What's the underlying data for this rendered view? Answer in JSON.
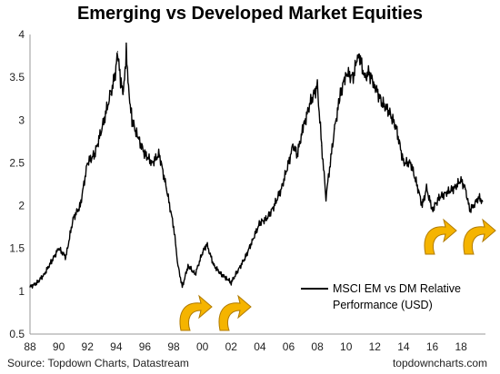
{
  "title": "Emerging vs Developed Market Equities",
  "source": "Source: Topdown Charts, Datastream",
  "watermark": "topdowncharts.com",
  "arrow_icon": "curved-up-arrow-icon",
  "colors": {
    "line": "#000000",
    "arrow_fill": "#F5B400",
    "arrow_edge": "#B07A00",
    "axis": "#999999"
  },
  "chart_data": {
    "type": "line",
    "title": "Emerging vs Developed Market Equities",
    "ylim": [
      0.5,
      4
    ],
    "yticks": [
      "0.5",
      "1",
      "1.5",
      "2",
      "2.5",
      "3",
      "3.5",
      "4"
    ],
    "xlim": [
      1988,
      2019.7
    ],
    "xticks": [
      "88",
      "90",
      "92",
      "94",
      "96",
      "98",
      "00",
      "02",
      "04",
      "06",
      "08",
      "10",
      "12",
      "14",
      "16",
      "18"
    ],
    "grid": false,
    "legend_position": "lower-right",
    "series": [
      {
        "name": "MSCI EM vs DM Relative Performance (USD)",
        "x": [
          1988.0,
          1988.5,
          1989.0,
          1989.5,
          1990.0,
          1990.5,
          1991.0,
          1991.5,
          1992.0,
          1992.5,
          1993.0,
          1993.3,
          1993.6,
          1993.9,
          1994.1,
          1994.3,
          1994.5,
          1994.7,
          1994.9,
          1995.1,
          1995.5,
          1996.0,
          1996.5,
          1997.0,
          1997.5,
          1998.0,
          1998.3,
          1998.6,
          1999.0,
          1999.5,
          2000.0,
          2000.3,
          2000.8,
          2001.3,
          2001.7,
          2002.0,
          2002.5,
          2003.0,
          2003.5,
          2004.0,
          2004.5,
          2005.0,
          2005.5,
          2006.0,
          2006.3,
          2006.6,
          2007.0,
          2007.5,
          2008.0,
          2008.3,
          2008.6,
          2008.9,
          2009.2,
          2009.6,
          2010.0,
          2010.5,
          2010.8,
          2011.0,
          2011.3,
          2011.6,
          2012.0,
          2012.5,
          2013.0,
          2013.5,
          2014.0,
          2014.5,
          2015.0,
          2015.3,
          2015.6,
          2016.0,
          2016.5,
          2017.0,
          2017.5,
          2018.0,
          2018.3,
          2018.6,
          2018.9,
          2019.2,
          2019.5
        ],
        "y": [
          1.05,
          1.1,
          1.2,
          1.35,
          1.5,
          1.4,
          1.85,
          2.0,
          2.5,
          2.6,
          2.9,
          3.1,
          3.3,
          3.5,
          3.8,
          3.45,
          3.3,
          3.8,
          3.3,
          3.0,
          2.8,
          2.6,
          2.5,
          2.6,
          2.2,
          1.75,
          1.3,
          1.05,
          1.3,
          1.2,
          1.45,
          1.55,
          1.3,
          1.2,
          1.15,
          1.1,
          1.25,
          1.4,
          1.6,
          1.8,
          1.85,
          2.0,
          2.2,
          2.5,
          2.7,
          2.6,
          2.9,
          3.2,
          3.4,
          2.7,
          2.1,
          2.5,
          2.9,
          3.3,
          3.55,
          3.5,
          3.75,
          3.7,
          3.5,
          3.55,
          3.4,
          3.2,
          3.1,
          2.9,
          2.5,
          2.5,
          2.2,
          2.0,
          2.2,
          1.95,
          2.1,
          2.15,
          2.2,
          2.3,
          2.2,
          1.95,
          2.0,
          2.1,
          2.05
        ]
      }
    ]
  }
}
